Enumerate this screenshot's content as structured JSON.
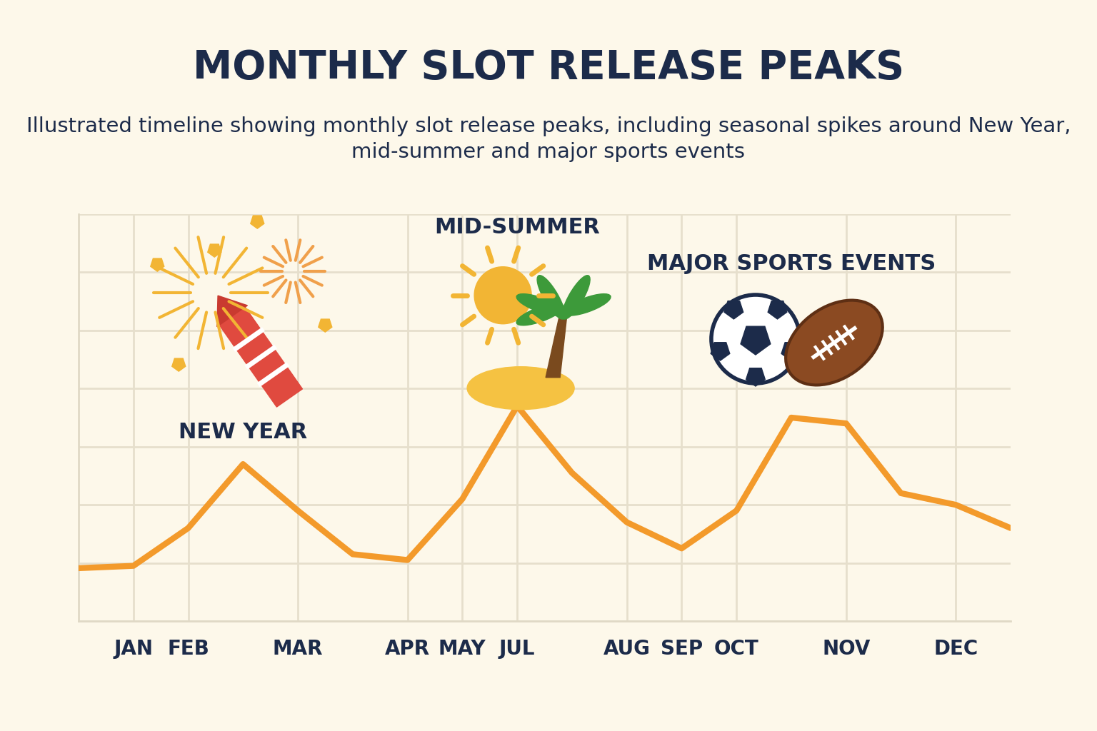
{
  "chart_data": {
    "type": "line",
    "title": "MONTHLY SLOT RELEASE PEAKS",
    "subtitle": "Illustrated timeline showing monthly slot release peaks, including seasonal spikes around New Year, mid-summer and major sports events",
    "categories": [
      null,
      "JAN",
      "FEB",
      null,
      "MAR",
      null,
      "APR",
      "MAY",
      "JUL",
      null,
      "AUG",
      "SEP",
      "OCT",
      null,
      "NOV",
      null,
      "DEC",
      null
    ],
    "values": [
      0.91,
      0.95,
      1.6,
      2.7,
      1.9,
      1.15,
      1.05,
      2.1,
      3.7,
      2.55,
      1.7,
      1.25,
      1.9,
      3.5,
      3.4,
      2.2,
      2.0,
      1.6
    ],
    "color": "#f39a2b",
    "ylim": [
      0,
      7
    ],
    "yticks": [
      0,
      1,
      2,
      3,
      4,
      5,
      6,
      7
    ],
    "grid": true,
    "tick_labels": "x",
    "annotations": [
      "NEW YEAR",
      "MID-SUMMER",
      "MAJOR SPORTS EVENTS"
    ]
  }
}
